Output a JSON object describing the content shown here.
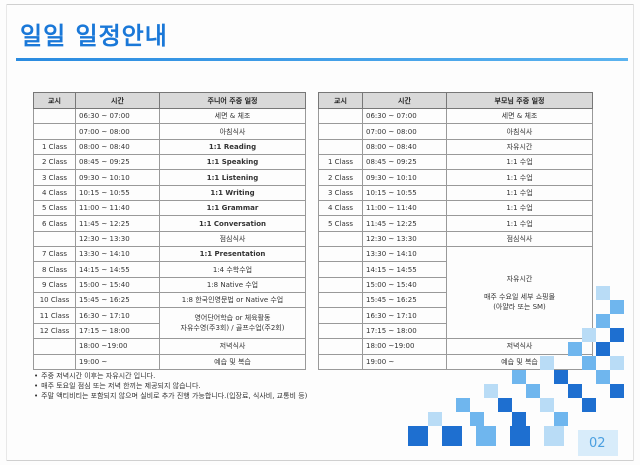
{
  "title": "일일 일정안내",
  "page_number": "02",
  "junior": {
    "headers": [
      "교시",
      "시간",
      "주니어 주중 일정"
    ],
    "rows": [
      {
        "period": "",
        "time": "06:30 ~ 07:00",
        "activity": "세면 & 체조"
      },
      {
        "period": "",
        "time": "07:00 ~ 08:00",
        "activity": "아침식사"
      },
      {
        "period": "1 Class",
        "time": "08:00 ~ 08:40",
        "activity": "1:1 Reading"
      },
      {
        "period": "2 Class",
        "time": "08:45 ~ 09:25",
        "activity": "1:1 Speaking"
      },
      {
        "period": "3 Class",
        "time": "09:30 ~ 10:10",
        "activity": "1:1 Listening"
      },
      {
        "period": "4 Class",
        "time": "10:15 ~ 10:55",
        "activity": "1:1 Writing"
      },
      {
        "period": "5 Class",
        "time": "11:00 ~ 11:40",
        "activity": "1:1 Grammar"
      },
      {
        "period": "6 Class",
        "time": "11:45 ~ 12:25",
        "activity": "1:1 Conversation"
      },
      {
        "period": "",
        "time": "12:30 ~ 13:30",
        "activity": "점심식사"
      },
      {
        "period": "7 Class",
        "time": "13:30 ~ 14:10",
        "activity": "1:1 Presentation"
      },
      {
        "period": "8 Class",
        "time": "14:15 ~ 14:55",
        "activity": "1:4 수학수업"
      },
      {
        "period": "9 Class",
        "time": "15:00 ~ 15:40",
        "activity": "1:8 Native 수업"
      },
      {
        "period": "10 Class",
        "time": "15:45 ~ 16:25",
        "activity": "1:8 한국인영문법 or Native 수업"
      },
      {
        "period": "11 Class",
        "time": "16:30 ~ 17:10",
        "activity": ""
      },
      {
        "period": "12 Class",
        "time": "17:15 ~ 18:00",
        "activity": ""
      },
      {
        "period": "",
        "time": "18:00 ~19:00",
        "activity": "저녁식사"
      },
      {
        "period": "",
        "time": "19:00 ~",
        "activity": "예습 및 복습"
      }
    ],
    "evening_merged_line1": "영어단어학습 or 체육활동",
    "evening_merged_line2": "자유수영(주3회) / 골프수업(주2회)"
  },
  "parent": {
    "headers": [
      "교시",
      "시간",
      "부모님 주중 일정"
    ],
    "rows": [
      {
        "period": "",
        "time": "06:30 ~ 07:00",
        "activity": "세면 & 체조"
      },
      {
        "period": "",
        "time": "07:00 ~ 08:00",
        "activity": "아침식사"
      },
      {
        "period": "",
        "time": "08:00 ~ 08:40",
        "activity": "자유시간"
      },
      {
        "period": "1 Class",
        "time": "08:45 ~ 09:25",
        "activity": "1:1 수업"
      },
      {
        "period": "2 Class",
        "time": "09:30 ~ 10:10",
        "activity": "1:1 수업"
      },
      {
        "period": "3 Class",
        "time": "10:15 ~ 10:55",
        "activity": "1:1 수업"
      },
      {
        "period": "4 Class",
        "time": "11:00 ~ 11:40",
        "activity": "1:1 수업"
      },
      {
        "period": "5 Class",
        "time": "11:45 ~ 12:25",
        "activity": "1:1 수업"
      },
      {
        "period": "",
        "time": "12:30 ~ 13:30",
        "activity": "점심식사"
      },
      {
        "period": "",
        "time": "13:30 ~ 14:10",
        "activity": ""
      },
      {
        "period": "",
        "time": "14:15 ~ 14:55",
        "activity": ""
      },
      {
        "period": "",
        "time": "15:00 ~ 15:40",
        "activity": ""
      },
      {
        "period": "",
        "time": "15:45 ~ 16:25",
        "activity": ""
      },
      {
        "period": "",
        "time": "16:30 ~ 17:10",
        "activity": ""
      },
      {
        "period": "",
        "time": "17:15 ~ 18:00",
        "activity": ""
      },
      {
        "period": "",
        "time": "18:00 ~19:00",
        "activity": "저녁식사"
      },
      {
        "period": "",
        "time": "19:00 ~",
        "activity": "예습 및 복습"
      }
    ],
    "free_merged_line1": "자유시간",
    "free_merged_line2": "매주 수요일 세부 쇼핑몰",
    "free_merged_line3": "(아얄라 또는 SM)"
  },
  "notes": [
    "주중 저녁시간 이후는 자유시간 입니다.",
    "매주 토요일 점심 또는 저녁 한끼는 제공되지 않습니다.",
    "주말 액티비티는 포함되지 않으며 실비로 추가 진행 가능합니다.(입장료, 식사비, 교통비 등)"
  ],
  "colors": {
    "accent": "#1a78d8",
    "square_dark": "#1e6fd0",
    "square_light": "#6fb6ee",
    "square_pale": "#b9dcf6"
  }
}
